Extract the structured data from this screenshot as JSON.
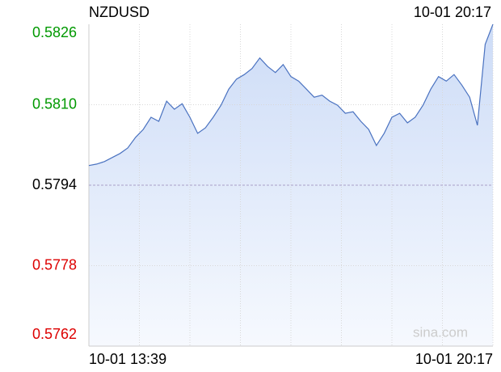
{
  "chart_data": {
    "type": "line",
    "title": "NZDUSD",
    "time": "10-01 20:17",
    "watermark": "sina.com",
    "categories": [
      "10-01 13:39",
      null,
      null,
      null,
      null,
      null,
      null,
      null,
      null,
      null,
      null,
      null,
      null,
      null,
      null,
      null,
      null,
      null,
      null,
      null,
      null,
      null,
      null,
      null,
      null,
      null,
      null,
      null,
      null,
      null,
      null,
      null,
      null,
      null,
      null,
      null,
      null,
      null,
      null,
      null,
      null,
      null,
      null,
      null,
      null,
      null,
      null,
      null,
      null,
      null,
      null,
      null,
      "10-01 20:17"
    ],
    "values": [
      0.57979,
      0.57982,
      0.57987,
      0.57995,
      0.58003,
      0.58014,
      0.58035,
      0.58051,
      0.58075,
      0.58067,
      0.58107,
      0.58091,
      0.58102,
      0.58075,
      0.58043,
      0.58054,
      0.58075,
      0.58099,
      0.58131,
      0.58151,
      0.5816,
      0.58172,
      0.58193,
      0.58176,
      0.58164,
      0.5818,
      0.58156,
      0.58147,
      0.58131,
      0.58115,
      0.58119,
      0.58107,
      0.58099,
      0.58083,
      0.58086,
      0.58067,
      0.58051,
      0.58019,
      0.58043,
      0.58075,
      0.58083,
      0.58064,
      0.58075,
      0.58099,
      0.58131,
      0.58156,
      0.58147,
      0.5816,
      0.58139,
      0.58115,
      0.58059,
      0.5822,
      0.5826
    ],
    "color": "#4a72c0",
    "baseline": 0.5794,
    "up_color": "#009900",
    "down_color": "#dd0000",
    "ylim": [
      0.5762,
      0.5826
    ],
    "yticks": [
      0.5762,
      0.5778,
      0.5794,
      {
        "value": 0.581,
        "label": "0.5810"
      },
      0.5826
    ],
    "grid": true
  }
}
